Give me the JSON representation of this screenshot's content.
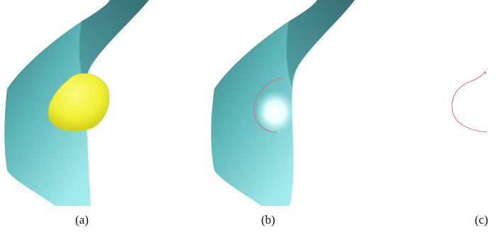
{
  "captions": {
    "a": "(a)",
    "b": "(b)",
    "c": "(c)"
  },
  "colors": {
    "surface_light": "#a8f0f0",
    "surface_mid": "#6fcfcf",
    "surface_dark": "#2f6f72",
    "sphere": "#f2f23a",
    "sphere_shadow": "#c9c916",
    "curve": "#e06a7a",
    "highlight": "#ffffff"
  }
}
